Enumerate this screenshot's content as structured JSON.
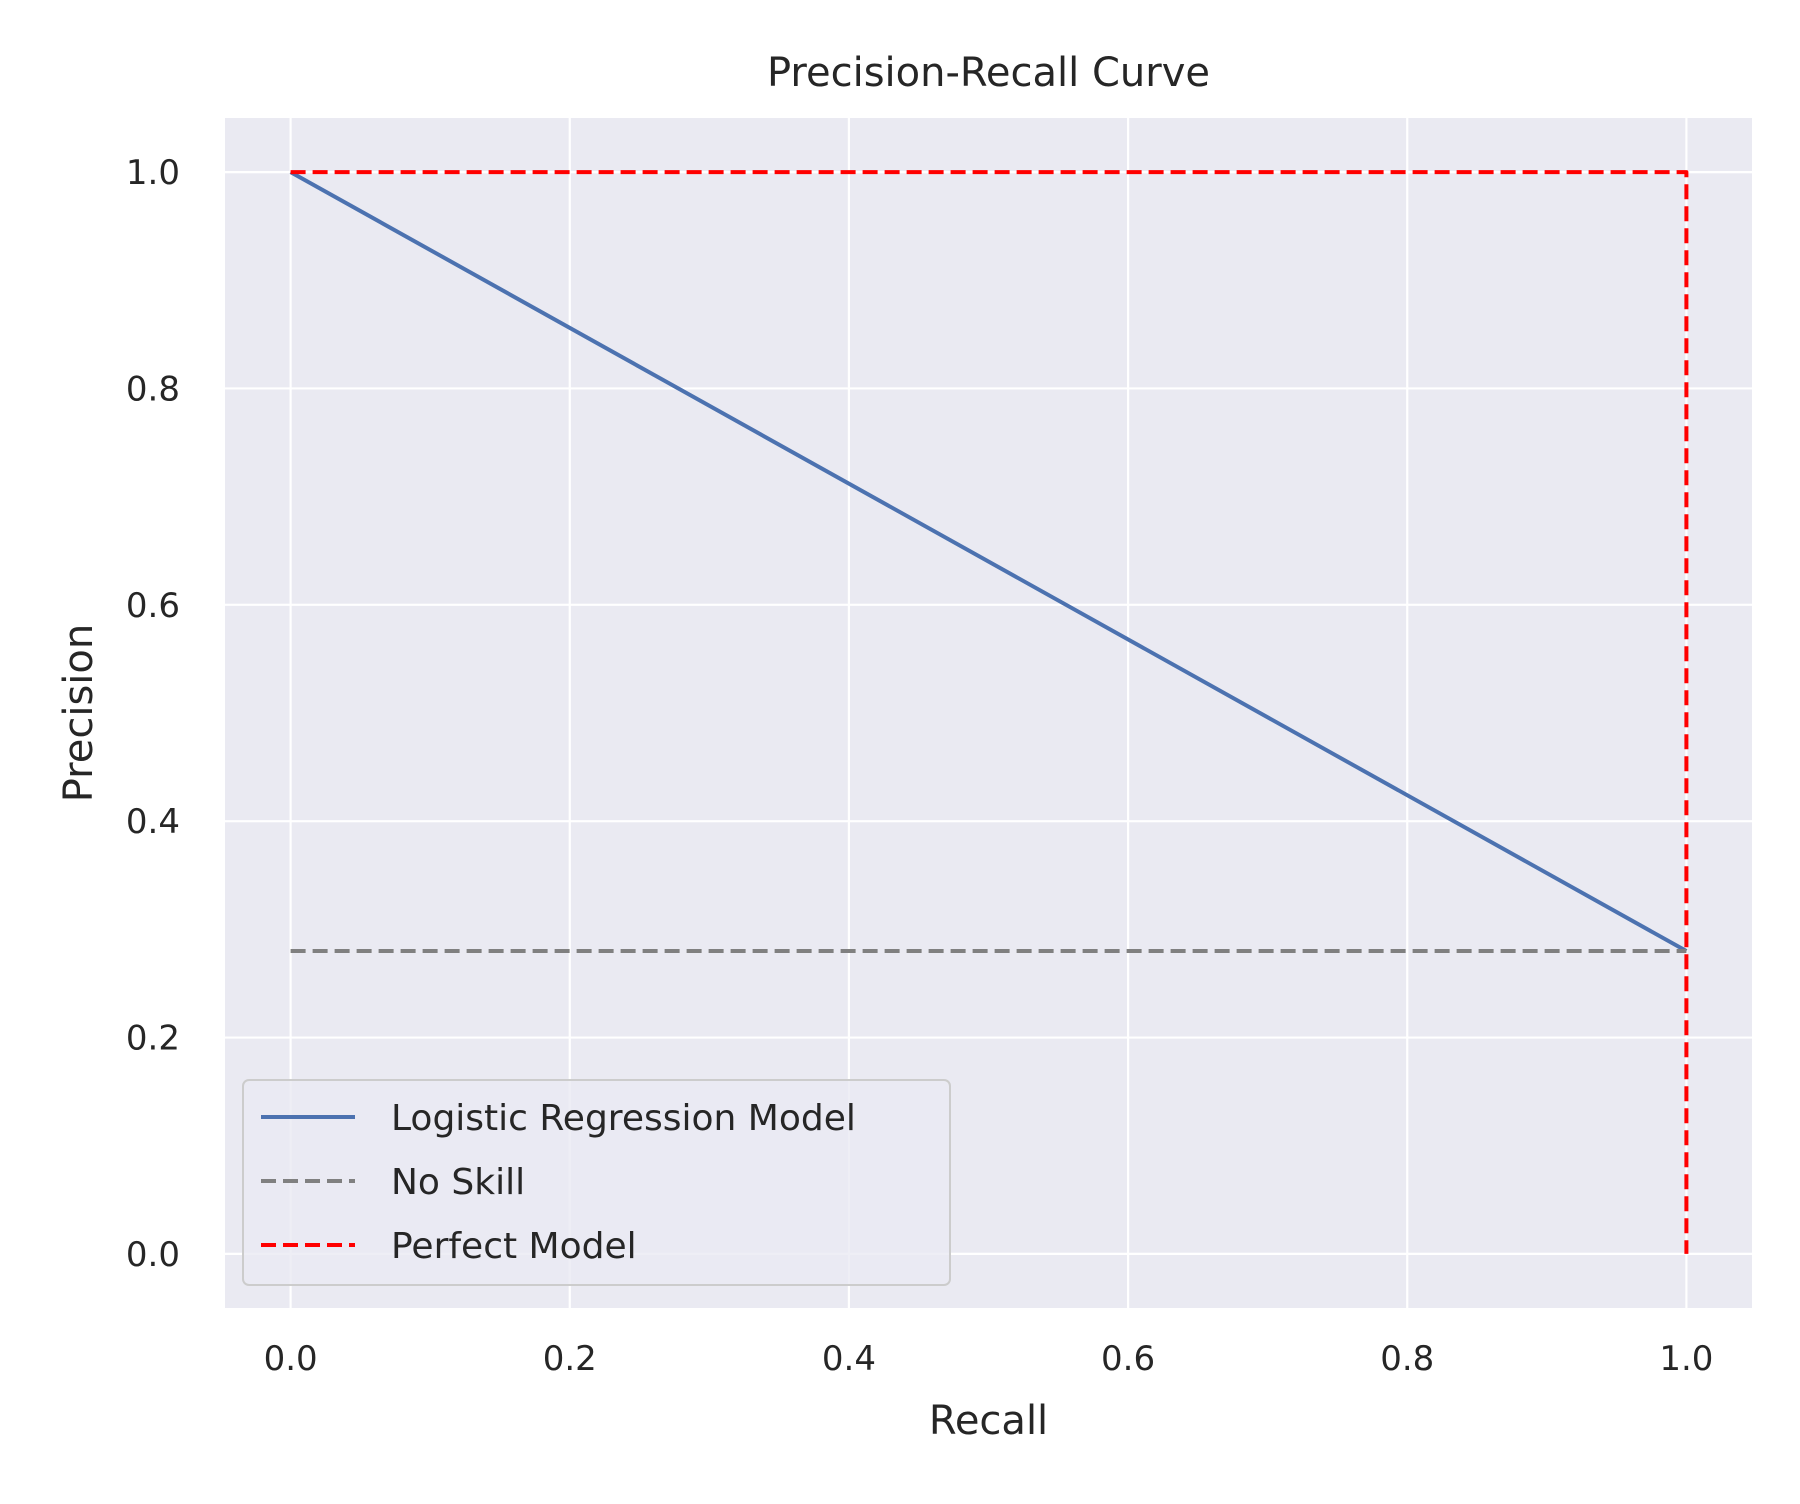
{
  "chart_data": {
    "type": "line",
    "title": "Precision-Recall Curve",
    "xlabel": "Recall",
    "ylabel": "Precision",
    "xlim": [
      -0.047,
      1.047
    ],
    "ylim": [
      -0.05,
      1.05
    ],
    "x_ticks": [
      "0.0",
      "0.2",
      "0.4",
      "0.6",
      "0.8",
      "1.0"
    ],
    "x_tick_values": [
      0.0,
      0.2,
      0.4,
      0.6,
      0.8,
      1.0
    ],
    "y_ticks": [
      "0.0",
      "0.2",
      "0.4",
      "0.6",
      "0.8",
      "1.0"
    ],
    "y_tick_values": [
      0.0,
      0.2,
      0.4,
      0.6,
      0.8,
      1.0
    ],
    "grid": true,
    "legend_position": "lower-left",
    "series": [
      {
        "name": "Logistic Regression Model",
        "style": "solid",
        "color": "#4c72b0",
        "x": [
          0.0,
          1.0
        ],
        "y": [
          1.0,
          0.28
        ]
      },
      {
        "name": "No Skill",
        "style": "dashed",
        "color": "#808080",
        "x": [
          0.0,
          1.0
        ],
        "y": [
          0.28,
          0.28
        ]
      },
      {
        "name": "Perfect Model",
        "style": "dashed",
        "color": "#ff0000",
        "x": [
          0.0,
          1.0,
          1.0
        ],
        "y": [
          1.0,
          1.0,
          0.0
        ]
      }
    ],
    "colors": {
      "plot_background": "#eaeaf2",
      "grid": "#ffffff",
      "text": "#262626"
    }
  }
}
